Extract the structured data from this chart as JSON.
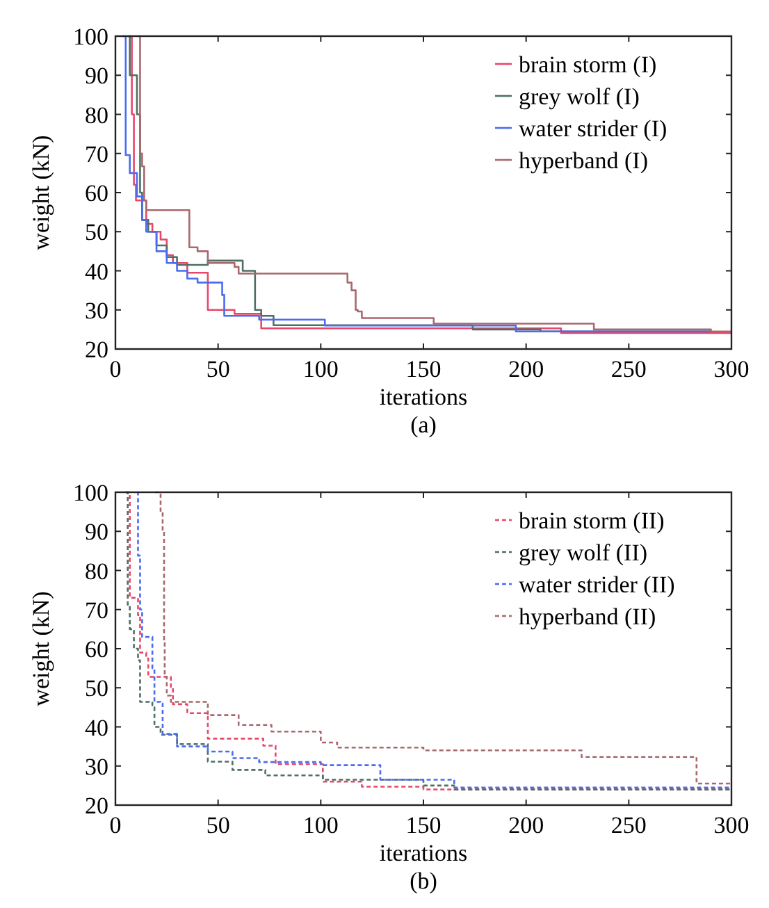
{
  "chart_data": [
    {
      "type": "step",
      "title": "(a)",
      "xlabel": "iterations",
      "ylabel": "weight (kN)",
      "xlim": [
        0,
        300
      ],
      "ylim": [
        20,
        100
      ],
      "xticks": [
        0,
        50,
        100,
        150,
        200,
        250,
        300
      ],
      "yticks": [
        20,
        30,
        40,
        50,
        60,
        70,
        80,
        90,
        100
      ],
      "legend": "top right",
      "line_style": "solid",
      "series": [
        {
          "name": "brain storm (I)",
          "color": "#e8476a",
          "x": [
            7,
            8,
            9,
            10,
            15,
            18,
            22,
            25,
            28,
            35,
            45,
            58,
            71,
            217,
            300
          ],
          "values": [
            100,
            80,
            62,
            58,
            52,
            50,
            48,
            44,
            42,
            39.5,
            30,
            29,
            25.3,
            24.1,
            24.1
          ]
        },
        {
          "name": "grey wolf (I)",
          "color": "#4f6f64",
          "x": [
            6,
            7,
            10.5,
            12,
            13,
            16,
            20,
            25,
            30,
            45,
            62,
            68,
            71,
            77,
            174,
            207,
            290
          ],
          "values": [
            100,
            90,
            80,
            60,
            53,
            50,
            46.5,
            43.5,
            41.5,
            42.6,
            40,
            30,
            28.5,
            26.1,
            25,
            24.5,
            24.5
          ]
        },
        {
          "name": "water strider (I)",
          "color": "#4a6cf0",
          "x": [
            3.3,
            5,
            7,
            10.5,
            13,
            15,
            20,
            25,
            30,
            35,
            40,
            52,
            53,
            70,
            102,
            195,
            290
          ],
          "values": [
            100,
            69.6,
            65,
            59,
            53,
            50,
            45,
            42,
            40,
            38,
            37,
            33.8,
            28.5,
            27.5,
            26,
            24.5,
            24.5
          ]
        },
        {
          "name": "hyperband (I)",
          "color": "#a8686e",
          "x": [
            11,
            12,
            13,
            14,
            15,
            36,
            40,
            45,
            58,
            60,
            113,
            115,
            117,
            118,
            120,
            155,
            233,
            290,
            300
          ],
          "values": [
            100,
            70,
            66.7,
            58,
            55.5,
            46,
            45,
            42,
            41,
            39.3,
            37,
            35,
            30,
            29.6,
            27.9,
            26.5,
            25,
            24.5,
            24.5
          ]
        }
      ]
    },
    {
      "type": "step",
      "title": "(b)",
      "xlabel": "iterations",
      "ylabel": "weight (kN)",
      "xlim": [
        0,
        300
      ],
      "ylim": [
        20,
        100
      ],
      "xticks": [
        0,
        50,
        100,
        150,
        200,
        250,
        300
      ],
      "yticks": [
        20,
        30,
        40,
        50,
        60,
        70,
        80,
        90,
        100
      ],
      "legend": "top right",
      "line_style": "dashed",
      "series": [
        {
          "name": "brain storm (II)",
          "color": "#e8476a",
          "x": [
            5,
            7,
            11,
            12,
            15,
            16,
            27,
            28,
            35,
            45,
            72,
            78,
            101,
            120,
            150,
            300
          ],
          "values": [
            100,
            73,
            68.6,
            59,
            57.5,
            52.8,
            50,
            45.8,
            43.5,
            37,
            35.2,
            30.5,
            26,
            24.7,
            24,
            24
          ]
        },
        {
          "name": "grey wolf (II)",
          "color": "#4f6f64",
          "x": [
            5,
            6,
            7,
            9,
            11,
            12,
            18,
            19,
            22,
            30,
            45,
            57,
            73,
            101,
            150,
            165,
            300
          ],
          "values": [
            100,
            71,
            65,
            60,
            57,
            46.4,
            45,
            40,
            38,
            35.6,
            31.1,
            29,
            27.6,
            26.5,
            25,
            24,
            24
          ]
        },
        {
          "name": "water strider (II)",
          "color": "#4a6cf0",
          "x": [
            10.5,
            11,
            12,
            13,
            18,
            19,
            22,
            23,
            30,
            45,
            57,
            70,
            100,
            129,
            165,
            300
          ],
          "values": [
            100,
            83.8,
            70,
            63,
            55,
            46.4,
            46,
            38.2,
            35,
            33.7,
            32,
            31,
            30.2,
            26.5,
            24.5,
            24.5
          ]
        },
        {
          "name": "hyperband (II)",
          "color": "#a8686e",
          "x": [
            19.3,
            22,
            23,
            23.7,
            24,
            25,
            27,
            45,
            60,
            76,
            100,
            108,
            150,
            227,
            283,
            300
          ],
          "values": [
            100,
            95,
            90,
            61.6,
            52.8,
            48,
            46.4,
            43,
            40.5,
            38.8,
            36,
            34.7,
            34,
            32.3,
            25.5,
            25.5
          ]
        }
      ]
    }
  ]
}
